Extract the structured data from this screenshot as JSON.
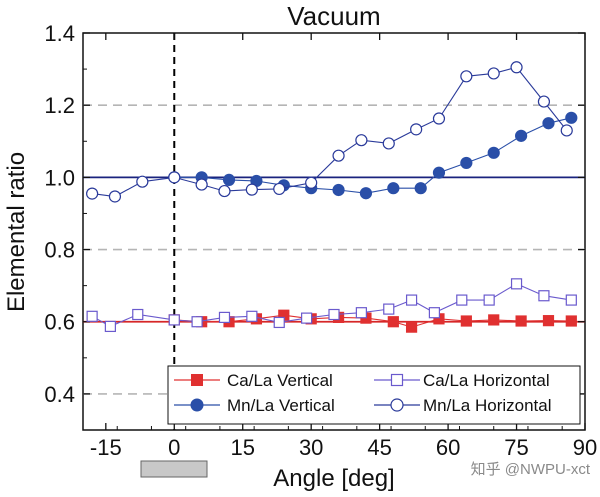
{
  "chart_data": {
    "type": "line",
    "title": "Vacuum",
    "xlabel": "Angle [deg]",
    "ylabel": "Elemental ratio",
    "xlim": [
      -20,
      90
    ],
    "ylim": [
      0.3,
      1.4
    ],
    "xticks": [
      -15,
      0,
      15,
      30,
      45,
      60,
      75,
      90
    ],
    "yticks": [
      0.4,
      0.6,
      0.8,
      1.0,
      1.2,
      1.4
    ],
    "xtick_labels": [
      "-15",
      "0",
      "15",
      "30",
      "45",
      "60",
      "75",
      "90"
    ],
    "ytick_labels": [
      "0.4",
      "0.6",
      "0.8",
      "1.0",
      "1.2",
      "1.4"
    ],
    "grid": "horizontal dashed at 0.4, 0.8, 1.2",
    "reference_lines": [
      {
        "axis": "x",
        "value": 0,
        "style": "dashed",
        "color": "#000000"
      },
      {
        "axis": "y",
        "value": 1.0,
        "style": "solid",
        "color": "#1a237e"
      },
      {
        "axis": "y",
        "value": 0.6,
        "style": "solid",
        "color": "#d62728"
      }
    ],
    "legend_position": "bottom-right",
    "series": [
      {
        "name": "Ca/La Vertical",
        "color": "#e03030",
        "marker": "square-filled",
        "x": [
          0,
          6,
          12,
          18,
          24,
          30,
          36,
          42,
          48,
          52,
          58,
          64,
          70,
          76,
          82,
          87
        ],
        "y": [
          0.605,
          0.6,
          0.6,
          0.608,
          0.618,
          0.608,
          0.612,
          0.61,
          0.6,
          0.585,
          0.608,
          0.602,
          0.605,
          0.602,
          0.603,
          0.602
        ]
      },
      {
        "name": "Ca/La Horizontal",
        "color": "#6a5acd",
        "marker": "square-open",
        "x": [
          -18,
          -14,
          -8,
          0,
          5,
          11,
          17,
          23,
          29,
          35,
          41,
          47,
          52,
          57,
          63,
          69,
          75,
          81,
          87
        ],
        "y": [
          0.615,
          0.587,
          0.62,
          0.605,
          0.6,
          0.612,
          0.615,
          0.598,
          0.61,
          0.62,
          0.625,
          0.635,
          0.66,
          0.625,
          0.66,
          0.66,
          0.705,
          0.672,
          0.66
        ]
      },
      {
        "name": "Mn/La Vertical",
        "color": "#2a4fa8",
        "marker": "circle-filled",
        "x": [
          0,
          6,
          12,
          18,
          24,
          30,
          36,
          42,
          48,
          54,
          58,
          64,
          70,
          76,
          82,
          87
        ],
        "y": [
          1.0,
          1.0,
          0.993,
          0.99,
          0.978,
          0.97,
          0.965,
          0.956,
          0.97,
          0.97,
          1.013,
          1.04,
          1.068,
          1.115,
          1.15,
          1.165
        ]
      },
      {
        "name": "Mn/La Horizontal",
        "color": "#2a3a9a",
        "marker": "circle-open",
        "x": [
          -18,
          -13,
          -7,
          0,
          6,
          11,
          17,
          23,
          30,
          36,
          41,
          47,
          53,
          58,
          64,
          70,
          75,
          81,
          86
        ],
        "y": [
          0.955,
          0.947,
          0.988,
          1.0,
          0.98,
          0.962,
          0.966,
          0.968,
          0.985,
          1.06,
          1.103,
          1.094,
          1.133,
          1.163,
          1.28,
          1.288,
          1.305,
          1.21,
          1.13
        ]
      }
    ],
    "annotations": [
      {
        "type": "gray-bar-below-axis",
        "x_range": [
          -7,
          7
        ],
        "color": "#c8c8c8"
      }
    ]
  },
  "watermark": "知乎 @NWPU-xct"
}
